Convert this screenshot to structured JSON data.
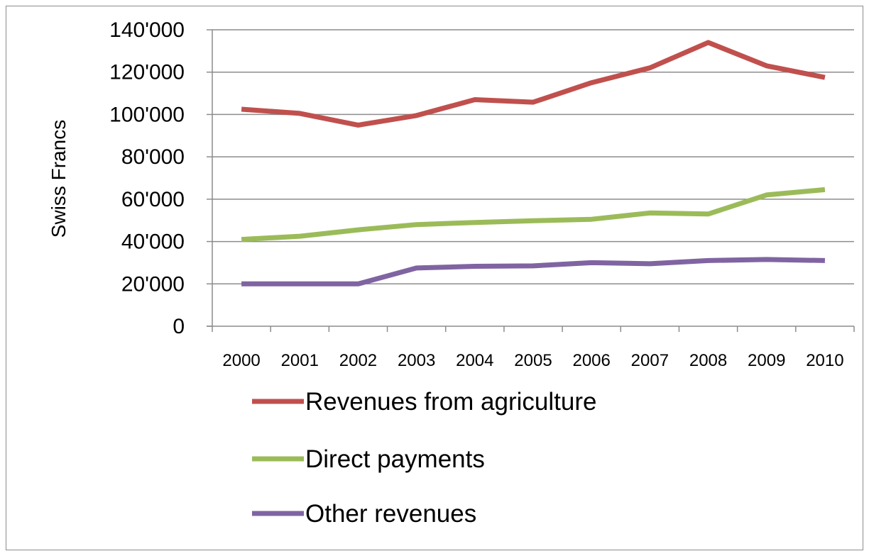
{
  "chart_data": {
    "type": "line",
    "ylabel": "Swiss Francs",
    "xlabel": "",
    "ylim": [
      0,
      140000
    ],
    "y_ticks": [
      0,
      20000,
      40000,
      60000,
      80000,
      100000,
      120000,
      140000
    ],
    "y_tick_labels": [
      "0",
      "20'000",
      "40'000",
      "60'000",
      "80'000",
      "100'000",
      "120'000",
      "140'000"
    ],
    "categories": [
      "2000",
      "2001",
      "2002",
      "2003",
      "2004",
      "2005",
      "2006",
      "2007",
      "2008",
      "2009",
      "2010"
    ],
    "grid": true,
    "legend_position": "bottom",
    "series": [
      {
        "name": "Revenues from agriculture",
        "color": "#c0504d",
        "values": [
          102500,
          100500,
          95000,
          99500,
          107000,
          105800,
          115000,
          122000,
          134000,
          123000,
          117500
        ]
      },
      {
        "name": "Direct payments",
        "color": "#9bbb59",
        "values": [
          41000,
          42500,
          45500,
          48000,
          49000,
          49800,
          50500,
          53500,
          53000,
          62000,
          64500
        ]
      },
      {
        "name": "Other revenues",
        "color": "#8064a2",
        "values": [
          20000,
          20000,
          20000,
          27500,
          28300,
          28500,
          30000,
          29500,
          31000,
          31500,
          31000
        ]
      }
    ]
  }
}
